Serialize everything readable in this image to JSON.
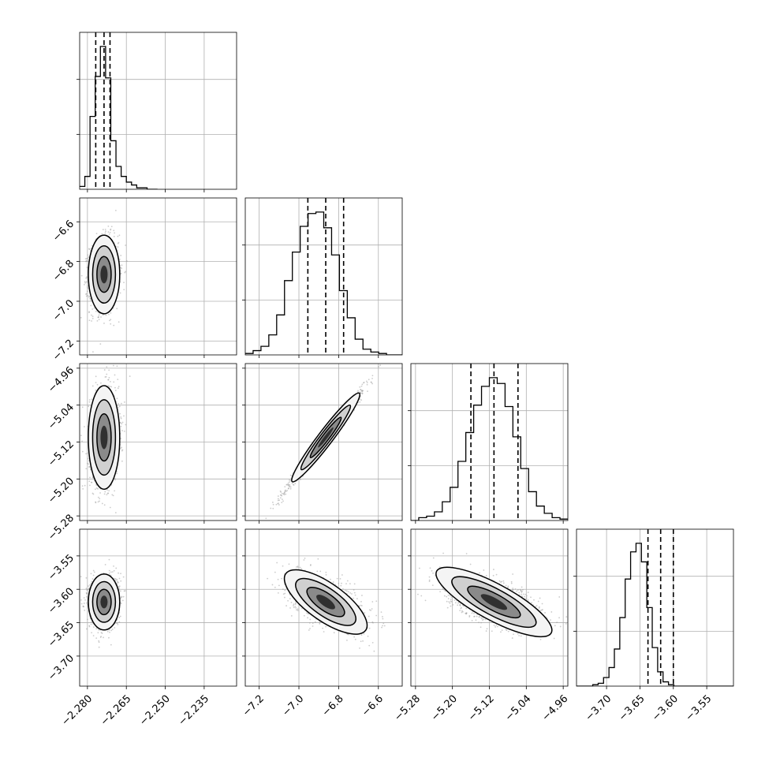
{
  "chart_data": {
    "type": "corner",
    "title": "",
    "grid": true,
    "n_params": 4,
    "params": [
      {
        "ticks": [
          -2.28,
          -2.265,
          -2.25,
          -2.235
        ],
        "tick_labels": [
          "−2.280",
          "−2.265",
          "−2.250",
          "−2.235"
        ],
        "range": [
          -2.283,
          -2.2225
        ]
      },
      {
        "ticks": [
          -7.2,
          -7.0,
          -6.8,
          -6.6
        ],
        "tick_labels": [
          "−7.2",
          "−7.0",
          "−6.8",
          "−6.6"
        ],
        "range": [
          -7.27,
          -6.48
        ]
      },
      {
        "ticks": [
          -5.28,
          -5.2,
          -5.12,
          -5.04,
          -4.96
        ],
        "tick_labels": [
          "−5.28",
          "−5.20",
          "−5.12",
          "−5.04",
          "−4.96"
        ],
        "range": [
          -5.29,
          -4.95
        ]
      },
      {
        "ticks": [
          -3.7,
          -3.65,
          -3.6,
          -3.55
        ],
        "tick_labels": [
          "−3.70",
          "−3.65",
          "−3.60",
          "−3.55"
        ],
        "range": [
          -3.745,
          -3.51
        ]
      }
    ],
    "quantiles": [
      [
        -2.2768,
        -2.2736,
        -2.2713
      ],
      [
        -6.955,
        -6.865,
        -6.775
      ],
      [
        -5.16,
        -5.11,
        -5.058
      ],
      [
        -3.638,
        -3.619,
        -3.6
      ]
    ],
    "histograms": [
      {
        "edges_from": -2.283,
        "bin_width": 0.002,
        "counts": [
          0.02,
          0.09,
          0.51,
          0.79,
          1.0,
          0.78,
          0.34,
          0.16,
          0.09,
          0.05,
          0.03,
          0.01,
          0.01,
          0,
          0
        ]
      },
      {
        "edges_from": -7.27,
        "bin_width": 0.0395,
        "counts": [
          0.01,
          0.03,
          0.06,
          0.14,
          0.28,
          0.52,
          0.72,
          0.9,
          0.99,
          1.0,
          0.89,
          0.7,
          0.45,
          0.26,
          0.11,
          0.04,
          0.02,
          0.01,
          0,
          0
        ]
      },
      {
        "edges_from": -5.29,
        "bin_width": 0.017,
        "counts": [
          0,
          0.02,
          0.03,
          0.06,
          0.13,
          0.23,
          0.41,
          0.61,
          0.8,
          0.93,
          0.99,
          0.95,
          0.79,
          0.58,
          0.36,
          0.2,
          0.1,
          0.05,
          0.02,
          0.01
        ]
      },
      {
        "edges_from": -3.745,
        "bin_width": 0.0081,
        "counts": [
          0,
          0,
          0,
          0.01,
          0.02,
          0.06,
          0.13,
          0.26,
          0.48,
          0.75,
          0.94,
          1.0,
          0.87,
          0.55,
          0.27,
          0.1,
          0.03,
          0.01,
          0,
          0,
          0,
          0,
          0,
          0,
          0,
          0,
          0,
          0,
          0
        ]
      }
    ],
    "correlations": [
      [
        1,
        0.1,
        0.12,
        0.05
      ],
      [
        0.1,
        1,
        0.99,
        -0.55
      ],
      [
        0.12,
        0.99,
        1,
        -0.58
      ],
      [
        0.05,
        -0.55,
        -0.58,
        1
      ]
    ]
  }
}
